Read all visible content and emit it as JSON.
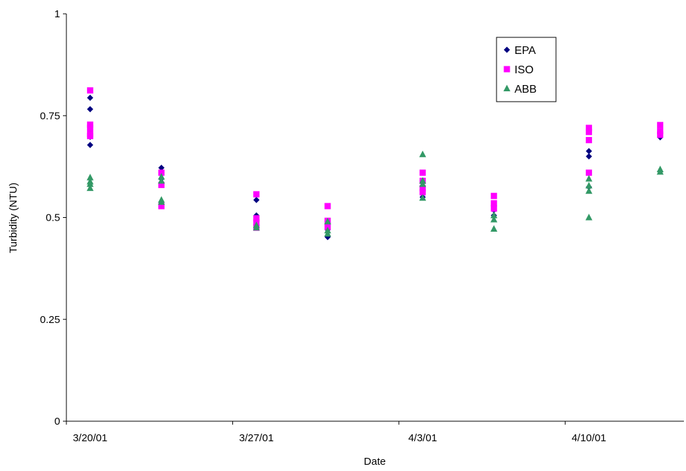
{
  "chart_data": {
    "type": "scatter",
    "title": "",
    "xlabel": "Date",
    "ylabel": "Turbidity (NTU)",
    "x_unit": "date",
    "xlim": [
      "2001-03-19",
      "2001-04-14"
    ],
    "ylim": [
      0,
      1
    ],
    "y_ticks": [
      0,
      0.25,
      0.5,
      0.75,
      1
    ],
    "y_tick_labels": [
      "0",
      "0.25",
      "0.5",
      "0.75",
      "1"
    ],
    "x_ticks": [
      "2001-03-20",
      "2001-03-27",
      "2001-04-03",
      "2001-04-10"
    ],
    "x_tick_labels": [
      "3/20/01",
      "3/27/01",
      "4/3/01",
      "4/10/01"
    ],
    "grid": false,
    "legend_position": "top-right",
    "series": [
      {
        "name": "EPA",
        "marker": "diamond",
        "color": "#000080",
        "points": [
          {
            "x": "2001-03-20",
            "y": 0.794
          },
          {
            "x": "2001-03-20",
            "y": 0.766
          },
          {
            "x": "2001-03-20",
            "y": 0.715
          },
          {
            "x": "2001-03-20",
            "y": 0.698
          },
          {
            "x": "2001-03-20",
            "y": 0.678
          },
          {
            "x": "2001-03-23",
            "y": 0.622
          },
          {
            "x": "2001-03-23",
            "y": 0.61
          },
          {
            "x": "2001-03-23",
            "y": 0.595
          },
          {
            "x": "2001-03-27",
            "y": 0.543
          },
          {
            "x": "2001-03-27",
            "y": 0.505
          },
          {
            "x": "2001-03-27",
            "y": 0.49
          },
          {
            "x": "2001-03-27",
            "y": 0.478
          },
          {
            "x": "2001-03-30",
            "y": 0.485
          },
          {
            "x": "2001-03-30",
            "y": 0.47
          },
          {
            "x": "2001-03-30",
            "y": 0.452
          },
          {
            "x": "2001-04-03",
            "y": 0.575
          },
          {
            "x": "2001-04-03",
            "y": 0.56
          },
          {
            "x": "2001-04-03",
            "y": 0.55
          },
          {
            "x": "2001-04-06",
            "y": 0.53
          },
          {
            "x": "2001-04-06",
            "y": 0.518
          },
          {
            "x": "2001-04-06",
            "y": 0.505
          },
          {
            "x": "2001-04-10",
            "y": 0.663
          },
          {
            "x": "2001-04-10",
            "y": 0.65
          },
          {
            "x": "2001-04-10",
            "y": 0.575
          },
          {
            "x": "2001-04-13",
            "y": 0.71
          },
          {
            "x": "2001-04-13",
            "y": 0.697
          }
        ]
      },
      {
        "name": "ISO",
        "marker": "square",
        "color": "#ff00ff",
        "points": [
          {
            "x": "2001-03-20",
            "y": 0.812
          },
          {
            "x": "2001-03-20",
            "y": 0.728
          },
          {
            "x": "2001-03-20",
            "y": 0.72
          },
          {
            "x": "2001-03-20",
            "y": 0.705
          },
          {
            "x": "2001-03-20",
            "y": 0.7
          },
          {
            "x": "2001-03-23",
            "y": 0.61
          },
          {
            "x": "2001-03-23",
            "y": 0.58
          },
          {
            "x": "2001-03-23",
            "y": 0.528
          },
          {
            "x": "2001-03-27",
            "y": 0.557
          },
          {
            "x": "2001-03-27",
            "y": 0.498
          },
          {
            "x": "2001-03-27",
            "y": 0.488
          },
          {
            "x": "2001-03-27",
            "y": 0.475
          },
          {
            "x": "2001-03-30",
            "y": 0.528
          },
          {
            "x": "2001-03-30",
            "y": 0.492
          },
          {
            "x": "2001-03-30",
            "y": 0.477
          },
          {
            "x": "2001-04-03",
            "y": 0.61
          },
          {
            "x": "2001-04-03",
            "y": 0.59
          },
          {
            "x": "2001-04-03",
            "y": 0.572
          },
          {
            "x": "2001-04-03",
            "y": 0.562
          },
          {
            "x": "2001-04-06",
            "y": 0.553
          },
          {
            "x": "2001-04-06",
            "y": 0.535
          },
          {
            "x": "2001-04-06",
            "y": 0.522
          },
          {
            "x": "2001-04-10",
            "y": 0.72
          },
          {
            "x": "2001-04-10",
            "y": 0.71
          },
          {
            "x": "2001-04-10",
            "y": 0.69
          },
          {
            "x": "2001-04-10",
            "y": 0.61
          },
          {
            "x": "2001-04-13",
            "y": 0.727
          },
          {
            "x": "2001-04-13",
            "y": 0.712
          },
          {
            "x": "2001-04-13",
            "y": 0.703
          }
        ]
      },
      {
        "name": "ABB",
        "marker": "triangle",
        "color": "#339966",
        "points": [
          {
            "x": "2001-03-20",
            "y": 0.598
          },
          {
            "x": "2001-03-20",
            "y": 0.588
          },
          {
            "x": "2001-03-20",
            "y": 0.582
          },
          {
            "x": "2001-03-20",
            "y": 0.572
          },
          {
            "x": "2001-03-23",
            "y": 0.6
          },
          {
            "x": "2001-03-23",
            "y": 0.59
          },
          {
            "x": "2001-03-23",
            "y": 0.543
          },
          {
            "x": "2001-03-23",
            "y": 0.538
          },
          {
            "x": "2001-03-27",
            "y": 0.481
          },
          {
            "x": "2001-03-27",
            "y": 0.475
          },
          {
            "x": "2001-03-30",
            "y": 0.49
          },
          {
            "x": "2001-03-30",
            "y": 0.468
          },
          {
            "x": "2001-03-30",
            "y": 0.46
          },
          {
            "x": "2001-04-03",
            "y": 0.655
          },
          {
            "x": "2001-04-03",
            "y": 0.59
          },
          {
            "x": "2001-04-03",
            "y": 0.582
          },
          {
            "x": "2001-04-03",
            "y": 0.548
          },
          {
            "x": "2001-04-06",
            "y": 0.505
          },
          {
            "x": "2001-04-06",
            "y": 0.495
          },
          {
            "x": "2001-04-06",
            "y": 0.472
          },
          {
            "x": "2001-04-10",
            "y": 0.595
          },
          {
            "x": "2001-04-10",
            "y": 0.578
          },
          {
            "x": "2001-04-10",
            "y": 0.565
          },
          {
            "x": "2001-04-10",
            "y": 0.5
          },
          {
            "x": "2001-04-13",
            "y": 0.618
          },
          {
            "x": "2001-04-13",
            "y": 0.612
          }
        ]
      }
    ]
  }
}
